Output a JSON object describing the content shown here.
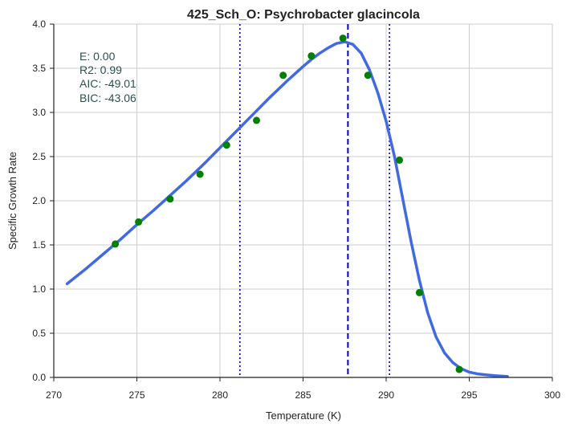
{
  "chart_data": {
    "type": "scatter",
    "title": "425_Sch_O: Psychrobacter glacincola",
    "xlabel": "Temperature (K)",
    "ylabel": "Specific Growth Rate",
    "xlim": [
      270,
      300
    ],
    "ylim": [
      0,
      4.0
    ],
    "xticks": [
      270,
      275,
      280,
      285,
      290,
      295,
      300
    ],
    "yticks": [
      0.0,
      0.5,
      1.0,
      1.5,
      2.0,
      2.5,
      3.0,
      3.5,
      4.0
    ],
    "grid": true,
    "stats": [
      "E:  0.00",
      "R2:  0.99",
      "AIC: -49.01",
      "BIC: -43.06"
    ],
    "points": {
      "color": "#008000",
      "x": [
        273.7,
        275.1,
        277.0,
        278.8,
        280.4,
        282.2,
        283.8,
        285.5,
        287.4,
        288.9,
        290.8,
        292.0,
        294.4
      ],
      "y": [
        1.51,
        1.76,
        2.02,
        2.3,
        2.63,
        2.91,
        3.42,
        3.64,
        3.84,
        3.42,
        2.46,
        0.96,
        0.09
      ]
    },
    "fit": {
      "color": "#4169e1",
      "x": [
        270.8,
        272,
        273,
        274,
        275,
        276,
        277,
        278,
        279,
        280,
        281,
        282,
        283,
        284,
        285,
        285.5,
        286,
        286.5,
        287,
        287.5,
        288,
        288.5,
        289,
        289.5,
        290,
        290.5,
        291,
        291.5,
        292,
        292.5,
        293,
        293.5,
        294,
        294.5,
        295,
        295.5,
        296,
        296.5,
        297,
        297.3
      ],
      "y": [
        1.06,
        1.24,
        1.4,
        1.56,
        1.73,
        1.89,
        2.06,
        2.23,
        2.41,
        2.6,
        2.79,
        2.98,
        3.17,
        3.35,
        3.52,
        3.6,
        3.67,
        3.73,
        3.78,
        3.8,
        3.77,
        3.67,
        3.48,
        3.22,
        2.9,
        2.5,
        2.02,
        1.54,
        1.1,
        0.73,
        0.46,
        0.28,
        0.17,
        0.1,
        0.06,
        0.04,
        0.03,
        0.02,
        0.015,
        0.01
      ]
    },
    "vlines": [
      {
        "x": 287.7,
        "style": "dashed",
        "color": "#0000cd"
      },
      {
        "x": 281.2,
        "style": "dotted",
        "color": "#0000cd"
      },
      {
        "x": 290.2,
        "style": "dotted",
        "color": "#0000cd"
      }
    ]
  }
}
